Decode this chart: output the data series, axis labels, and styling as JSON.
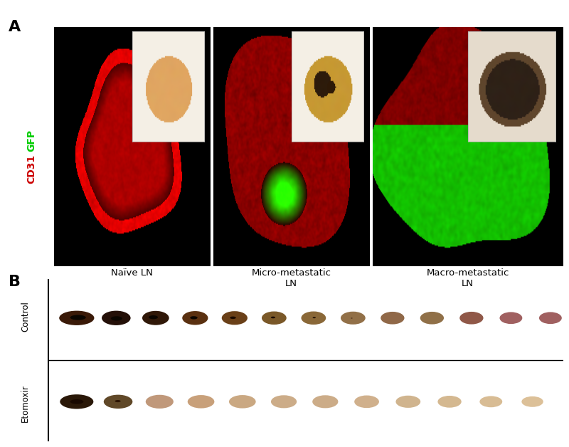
{
  "figure_width": 8.0,
  "figure_height": 6.28,
  "panel_A_label": "A",
  "panel_B_label": "B",
  "panel_A_ylabel_gfp": "GFP",
  "panel_A_ylabel_cd31": "CD31",
  "panel_A_ylabel_gfp_color": "#00cc00",
  "panel_A_ylabel_cd31_color": "#cc0000",
  "panel_A_captions": [
    "Naïve LN",
    "Micro-metastatic\nLN",
    "Macro-metastatic\nLN"
  ],
  "panel_B_label_control": "Control",
  "panel_B_label_etomoxir": "Etomoxir",
  "control_nodes_colors": [
    "#3a1a08",
    "#241008",
    "#301808",
    "#5a3010",
    "#6a4018",
    "#7a5828",
    "#8a6838",
    "#927048",
    "#906848",
    "#907048",
    "#905848",
    "#a06060"
  ],
  "etomoxir_nodes_colors": [
    "#2a1808",
    "#604828",
    "#c0987a",
    "#c8a07a",
    "#caa882",
    "#ccac88",
    "#ccac88",
    "#d0b08c",
    "#d0b48e",
    "#d4b890",
    "#d8bc94",
    "#dcc098"
  ],
  "background_color": "#ffffff"
}
